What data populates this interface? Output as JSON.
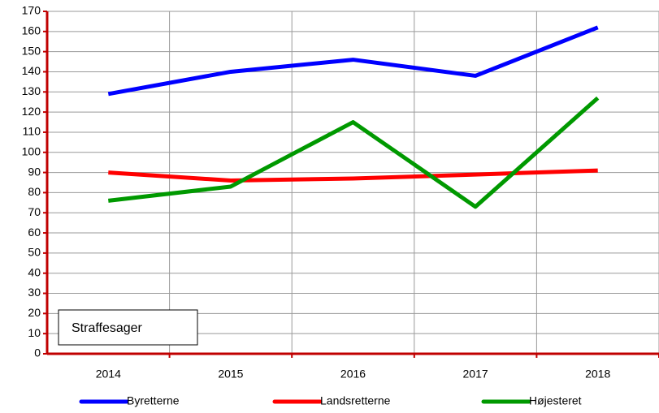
{
  "chart_data": {
    "type": "line",
    "categories": [
      "2014",
      "2015",
      "2016",
      "2017",
      "2018"
    ],
    "series": [
      {
        "name": "Byretterne",
        "color": "#0000ff",
        "values": [
          129,
          140,
          146,
          138,
          162
        ]
      },
      {
        "name": "Landsretterne",
        "color": "#ff0000",
        "values": [
          90,
          86,
          87,
          89,
          91
        ]
      },
      {
        "name": "Højesteret",
        "color": "#009900",
        "values": [
          76,
          83,
          115,
          73,
          127
        ]
      }
    ],
    "annotation": "Straffesager",
    "ylim": [
      0,
      170
    ],
    "yticks": [
      0,
      10,
      20,
      30,
      40,
      50,
      60,
      70,
      80,
      90,
      100,
      110,
      120,
      130,
      140,
      150,
      160,
      170
    ],
    "grid": true,
    "legend": "bottom",
    "axis_color": "#c00000"
  }
}
